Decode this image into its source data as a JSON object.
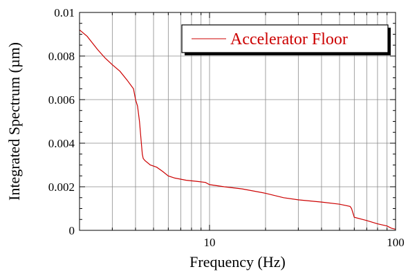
{
  "chart_data": {
    "type": "line",
    "x_scale": "log",
    "xlim": [
      2,
      100
    ],
    "ylim": [
      0,
      0.01
    ],
    "xlabel": "Frequency (Hz)",
    "ylabel": "Integrated Spectrum (µm)",
    "x_tick_labels": [
      {
        "value": 10,
        "label": "10"
      },
      {
        "value": 100,
        "label": "100"
      }
    ],
    "y_tick_labels": [
      {
        "value": 0,
        "label": "0"
      },
      {
        "value": 0.002,
        "label": "0.002"
      },
      {
        "value": 0.004,
        "label": "0.004"
      },
      {
        "value": 0.006,
        "label": "0.006"
      },
      {
        "value": 0.008,
        "label": "0.008"
      },
      {
        "value": 0.01,
        "label": "0.01"
      }
    ],
    "grid": true,
    "legend_position": "top-right",
    "series": [
      {
        "name": "Accelerator Floor",
        "color": "#cc0000",
        "x": [
          2,
          2.2,
          2.5,
          2.75,
          3.0,
          3.3,
          3.6,
          3.9,
          4.0,
          4.1,
          4.2,
          4.3,
          4.35,
          4.4,
          4.5,
          4.8,
          5.2,
          5.6,
          6.0,
          6.5,
          7.5,
          8.5,
          9.5,
          10.0,
          12,
          15,
          20,
          25,
          30,
          40,
          50,
          57,
          58,
          60,
          70,
          80,
          90,
          95,
          100
        ],
        "y": [
          0.0092,
          0.0089,
          0.0083,
          0.0079,
          0.0076,
          0.0073,
          0.0069,
          0.0065,
          0.006,
          0.0057,
          0.005,
          0.004,
          0.0035,
          0.0033,
          0.0032,
          0.003,
          0.0029,
          0.0027,
          0.0025,
          0.0024,
          0.0023,
          0.00225,
          0.0022,
          0.0021,
          0.002,
          0.0019,
          0.0017,
          0.0015,
          0.0014,
          0.0013,
          0.0012,
          0.0011,
          0.001,
          0.0006,
          0.00045,
          0.0003,
          0.0002,
          0.0001,
          5e-05
        ]
      }
    ]
  }
}
